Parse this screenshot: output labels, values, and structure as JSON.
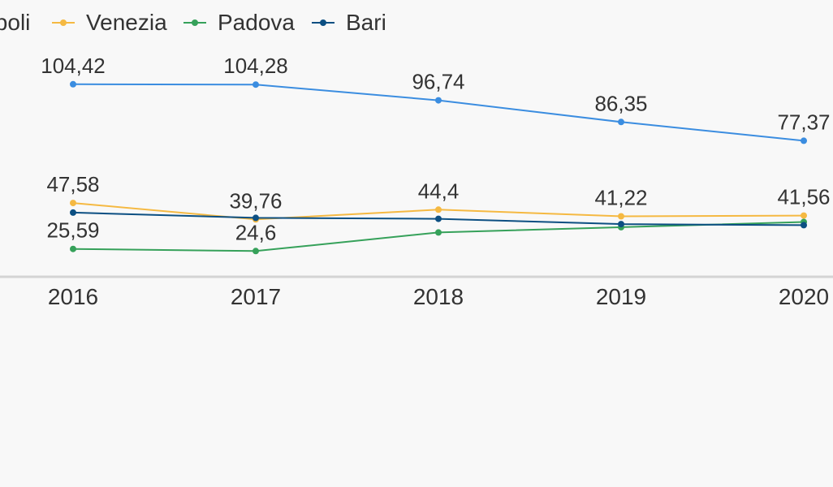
{
  "chart_data": {
    "type": "line",
    "categories": [
      "2016",
      "2017",
      "2018",
      "2019",
      "2020"
    ],
    "legend_position": "top-left",
    "grid": false,
    "series": [
      {
        "name": "Napoli",
        "color": "#3b8de0",
        "values": [
          104.42,
          104.28,
          96.74,
          86.35,
          77.37
        ],
        "labels": [
          "104,42",
          "104,28",
          "96,74",
          "86,35",
          "77,37"
        ]
      },
      {
        "name": "Venezia",
        "color": "#f5b942",
        "values": [
          47.58,
          39.76,
          44.4,
          41.22,
          41.56
        ],
        "labels": [
          "47,58",
          "39,76",
          "44,4",
          "41,22",
          "41,56"
        ]
      },
      {
        "name": "Padova",
        "color": "#36a15a",
        "values": [
          25.59,
          24.6,
          33.5,
          36.0,
          38.5
        ],
        "labels": [
          "25,59",
          "24,6",
          "",
          "",
          ""
        ]
      },
      {
        "name": "Bari",
        "color": "#0c4f82",
        "values": [
          43.0,
          40.5,
          40.0,
          37.5,
          37.0
        ],
        "labels": [
          "",
          "",
          "",
          "",
          ""
        ]
      }
    ],
    "ylim": [
      -20,
      136
    ]
  }
}
